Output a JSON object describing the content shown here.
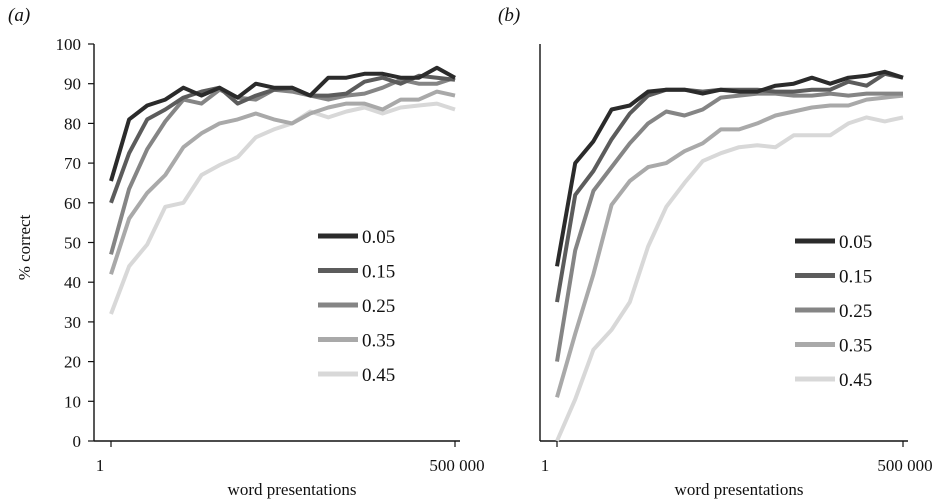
{
  "chart_data": [
    {
      "type": "line",
      "panel_label": "(a)",
      "xlabel": "word presentations",
      "ylabel": "% correct",
      "x_scale": "log",
      "x_tick_labels": [
        "1",
        "500 000"
      ],
      "x_ticks": [
        1,
        500000
      ],
      "xlim": [
        1,
        500000
      ],
      "ylim": [
        0,
        100
      ],
      "y_ticks": [
        0,
        10,
        20,
        30,
        40,
        50,
        60,
        70,
        80,
        90,
        100
      ],
      "grid": false,
      "legend_position": "center-right",
      "series": [
        {
          "name": "0.05",
          "color": "#2b2b2b",
          "values": [
            65.5,
            81.0,
            84.5,
            86.0,
            89.0,
            87.0,
            89.0,
            86.5,
            90.0,
            89.0,
            89.0,
            87.0,
            91.5,
            91.5,
            92.5,
            92.5,
            91.5,
            91.5,
            94.0,
            91.5
          ]
        },
        {
          "name": "0.15",
          "color": "#5c5c5c",
          "values": [
            60.0,
            72.5,
            81.0,
            83.5,
            86.5,
            88.0,
            89.0,
            85.0,
            87.0,
            88.5,
            89.0,
            87.0,
            87.0,
            87.5,
            90.5,
            91.5,
            90.0,
            92.0,
            91.5,
            91.0
          ]
        },
        {
          "name": "0.25",
          "color": "#858585",
          "values": [
            47.0,
            63.5,
            73.5,
            80.5,
            86.0,
            85.0,
            88.5,
            86.5,
            86.0,
            88.5,
            88.0,
            87.0,
            86.0,
            87.0,
            87.5,
            89.0,
            91.0,
            90.0,
            90.0,
            91.5
          ]
        },
        {
          "name": "0.35",
          "color": "#a9a9a9",
          "values": [
            42.0,
            56.0,
            62.5,
            67.0,
            74.0,
            77.5,
            80.0,
            81.0,
            82.5,
            81.0,
            80.0,
            82.5,
            84.0,
            85.0,
            85.0,
            83.5,
            86.0,
            86.0,
            88.0,
            87.0
          ]
        },
        {
          "name": "0.45",
          "color": "#d8d8d8",
          "values": [
            32.0,
            44.0,
            49.5,
            59.0,
            60.0,
            67.0,
            69.5,
            71.5,
            76.5,
            78.5,
            80.0,
            83.0,
            81.5,
            83.0,
            84.0,
            82.5,
            84.0,
            84.5,
            85.0,
            83.5
          ]
        }
      ]
    },
    {
      "type": "line",
      "panel_label": "(b)",
      "xlabel": "word presentations",
      "ylabel": "",
      "x_scale": "log",
      "x_tick_labels": [
        "1",
        "500 000"
      ],
      "x_ticks": [
        1,
        500000
      ],
      "xlim": [
        1,
        500000
      ],
      "ylim": [
        0,
        100
      ],
      "grid": false,
      "legend_position": "center-right",
      "series": [
        {
          "name": "0.05",
          "color": "#2b2b2b",
          "values": [
            44.0,
            70.0,
            75.5,
            83.5,
            84.5,
            88.0,
            88.5,
            88.5,
            87.5,
            88.5,
            88.0,
            88.0,
            89.5,
            90.0,
            91.5,
            90.0,
            91.5,
            92.0,
            93.0,
            91.5
          ]
        },
        {
          "name": "0.15",
          "color": "#5c5c5c",
          "values": [
            35.0,
            62.0,
            68.0,
            76.0,
            82.5,
            87.0,
            88.5,
            88.5,
            88.0,
            88.5,
            88.5,
            88.5,
            88.0,
            88.0,
            88.5,
            88.5,
            90.5,
            89.5,
            92.5,
            91.5
          ]
        },
        {
          "name": "0.25",
          "color": "#858585",
          "values": [
            20.0,
            48.0,
            63.0,
            69.0,
            75.0,
            80.0,
            83.0,
            82.0,
            83.5,
            86.5,
            87.0,
            87.5,
            87.5,
            87.0,
            87.0,
            87.5,
            87.0,
            87.5,
            87.5,
            87.5
          ]
        },
        {
          "name": "0.35",
          "color": "#a9a9a9",
          "values": [
            11.0,
            27.0,
            42.0,
            59.5,
            65.5,
            69.0,
            70.0,
            73.0,
            75.0,
            78.5,
            78.5,
            80.0,
            82.0,
            83.0,
            84.0,
            84.5,
            84.5,
            86.0,
            86.5,
            87.0
          ]
        },
        {
          "name": "0.45",
          "color": "#d8d8d8",
          "values": [
            0.0,
            10.5,
            23.0,
            28.0,
            35.0,
            49.0,
            59.0,
            65.0,
            70.5,
            72.5,
            74.0,
            74.5,
            74.0,
            77.0,
            77.0,
            77.0,
            80.0,
            81.5,
            80.5,
            81.5
          ]
        }
      ]
    }
  ]
}
